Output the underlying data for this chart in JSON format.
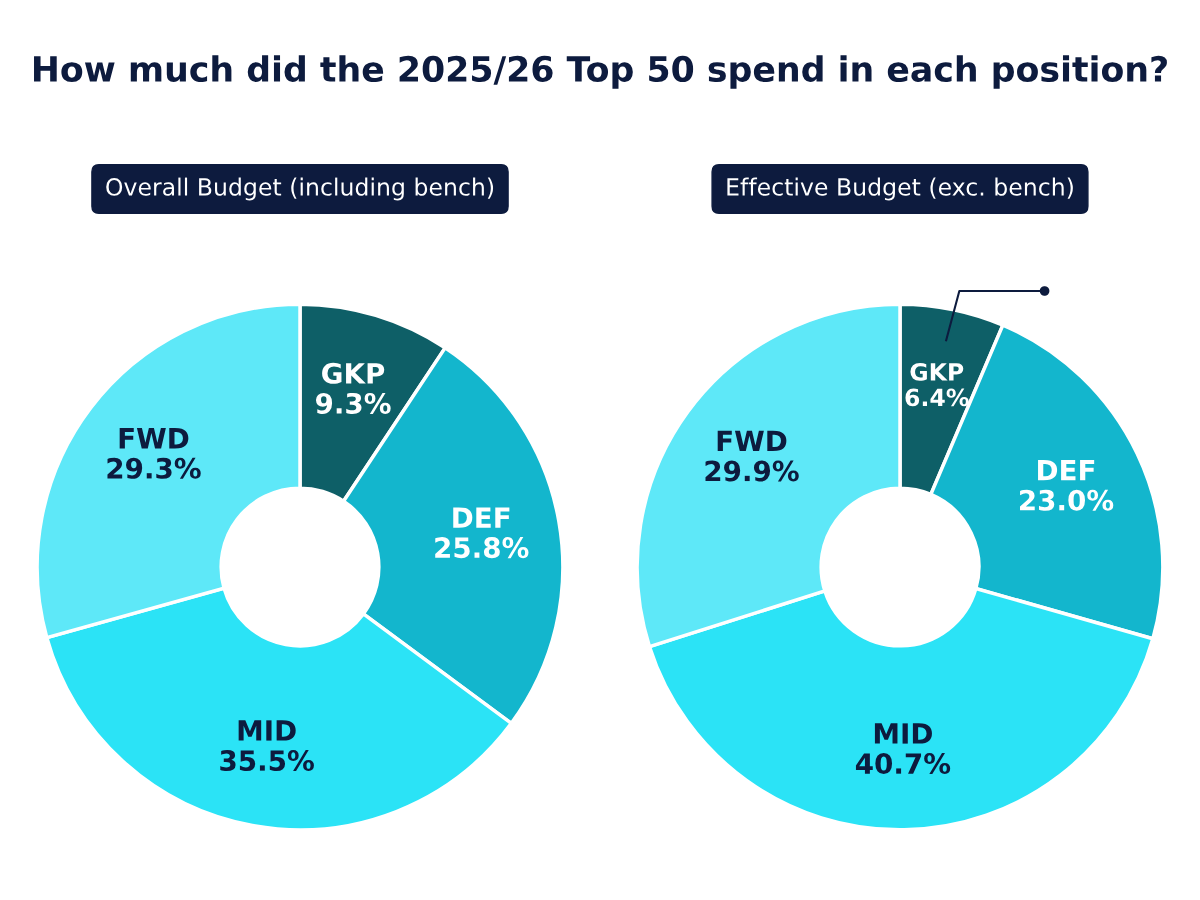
{
  "chart_data": [
    {
      "type": "donut",
      "title": "How much did the 2025/26 Top 50 spend in each position?",
      "subtitle": "Overall Budget (including bench)",
      "categories": [
        "GKP",
        "DEF",
        "MID",
        "FWD"
      ],
      "values": [
        9.3,
        25.8,
        35.5,
        29.3
      ],
      "value_labels": [
        "9.3%",
        "25.8%",
        "35.5%",
        "29.3%"
      ],
      "colors": [
        "#0e5f67",
        "#13b6cd",
        "#2be3f6",
        "#5ee8f8"
      ]
    },
    {
      "type": "donut",
      "subtitle": "Effective Budget (exc. bench)",
      "categories": [
        "GKP",
        "DEF",
        "MID",
        "FWD"
      ],
      "values": [
        6.4,
        23.0,
        40.7,
        29.9
      ],
      "value_labels": [
        "6.4%",
        "23.0%",
        "40.7%",
        "29.9%"
      ],
      "colors": [
        "#0e5f67",
        "#13b6cd",
        "#2be3f6",
        "#5ee8f8"
      ]
    }
  ]
}
